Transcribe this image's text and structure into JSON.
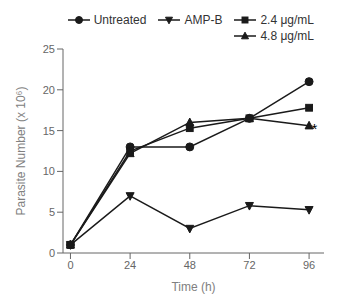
{
  "chart_data": {
    "type": "line",
    "x_label": "Time (h)",
    "y_label": "Parasite Number (x 10⁶)",
    "x": [
      0,
      24,
      48,
      72,
      96
    ],
    "series": [
      {
        "name": "Untreated",
        "color": "#1a1a1a",
        "marker": "circle",
        "values": [
          1,
          13,
          13,
          16.5,
          21
        ]
      },
      {
        "name": "AMP-B",
        "color": "#1a1a1a",
        "marker": "triangle-down",
        "values": [
          1,
          7,
          3,
          5.8,
          5.3
        ]
      },
      {
        "name": "2.4 μg/mL",
        "color": "#1a1a1a",
        "marker": "square",
        "values": [
          1,
          12.5,
          15.3,
          16.5,
          17.8
        ]
      },
      {
        "name": "4.8 μg/mL",
        "color": "#1a1a1a",
        "marker": "triangle-up",
        "values": [
          1,
          12.2,
          16,
          16.5,
          15.6
        ]
      }
    ],
    "xlim": [
      -3,
      102
    ],
    "xticks": [
      0,
      24,
      48,
      72,
      96
    ],
    "ylim": [
      0,
      25
    ],
    "yticks": [
      0,
      5,
      10,
      15,
      20,
      25
    ],
    "grid": false,
    "legend": "upper right",
    "annotations": [
      {
        "text": "*",
        "x": 97,
        "y": 15.2
      }
    ]
  }
}
